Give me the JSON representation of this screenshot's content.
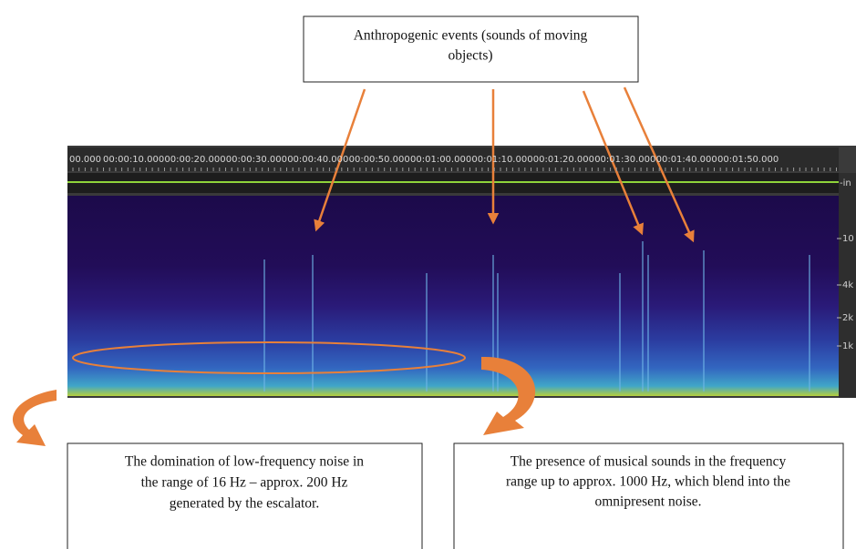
{
  "top_box": {
    "lines": [
      "Anthropogenic events  (sounds of moving",
      "objects)"
    ]
  },
  "left_box": {
    "lines": [
      "The domination of low-frequency noise in",
      "the range of 16 Hz – approx. 200 Hz",
      "generated by the escalator."
    ]
  },
  "right_box": {
    "lines": [
      "The presence of musical sounds in the frequency",
      "range up to approx. 1000 Hz, which blend into the",
      "omnipresent noise."
    ]
  },
  "spectrogram": {
    "time_labels": [
      "00.000",
      "00:00:10.000",
      "00:00:20.000",
      "00:00:30.000",
      "00:00:40.000",
      "00:00:50.000",
      "00:01:00.000",
      "00:01:10.000",
      "00:01:20.000",
      "00:01:30.000",
      "00:01:40.000",
      "00:01:50.000"
    ],
    "level_label": "-in",
    "freq_labels": [
      "10",
      "4k",
      "2k",
      "1k"
    ]
  }
}
